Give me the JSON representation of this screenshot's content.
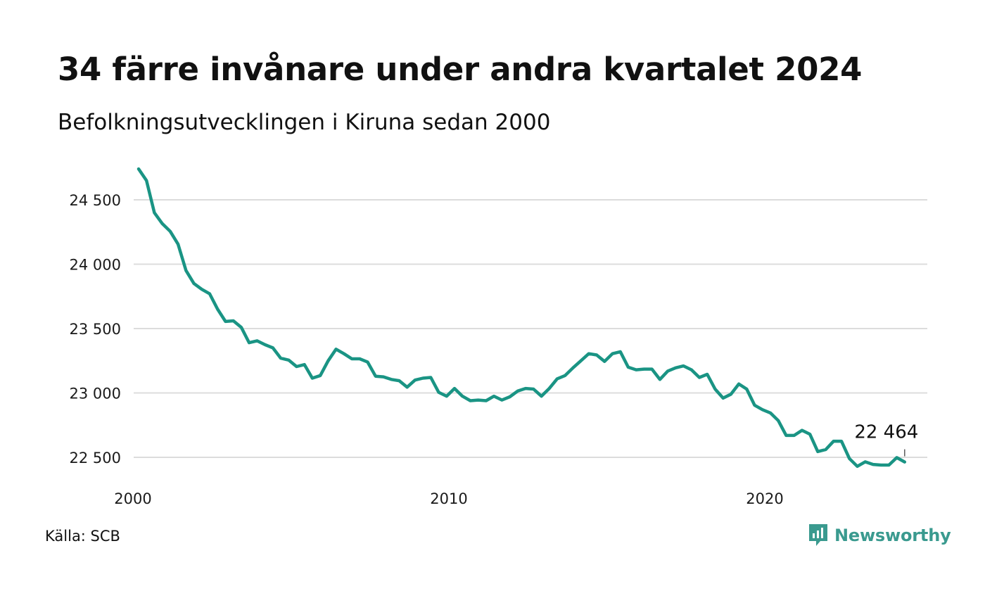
{
  "header": {
    "title": "34 färre invånare under andra kvartalet 2024",
    "subtitle": "Befolkningsutvecklingen i Kiruna sedan 2000"
  },
  "footer": {
    "source": "Källa: SCB",
    "brand": "Newsworthy",
    "brand_icon": "newsworthy-logo-icon"
  },
  "colors": {
    "line": "#1a9484",
    "grid": "#dcdcdc",
    "brand": "#3a9a8f"
  },
  "chart_data": {
    "type": "line",
    "x_tick_labels": [
      "2000",
      "2010",
      "2020"
    ],
    "y_tick_labels": [
      "24 500",
      "24 000",
      "23 500",
      "23 000",
      "22 500"
    ],
    "y_ticks": [
      24500,
      24000,
      23500,
      23000,
      22500
    ],
    "x_ticks": [
      2000,
      2010,
      2020
    ],
    "ylim": [
      22300,
      24750
    ],
    "xlim": [
      2000,
      2024.5
    ],
    "grid": "horizontal",
    "end_label": "22 464",
    "series": [
      {
        "x": [
          2000.0,
          2000.25,
          2000.5,
          2000.75,
          2001.0,
          2001.25,
          2001.5,
          2001.75,
          2002.0,
          2002.25,
          2002.5,
          2002.75,
          2003.0,
          2003.25,
          2003.5,
          2003.75,
          2004.0,
          2004.25,
          2004.5,
          2004.75,
          2005.0,
          2005.25,
          2005.5,
          2005.75,
          2006.0,
          2006.25,
          2006.5,
          2006.75,
          2007.0,
          2007.25,
          2007.5,
          2007.75,
          2008.0,
          2008.25,
          2008.5,
          2008.75,
          2009.0,
          2009.25,
          2009.5,
          2009.75,
          2010.0,
          2010.25,
          2010.5,
          2010.75,
          2011.0,
          2011.25,
          2011.5,
          2011.75,
          2012.0,
          2012.25,
          2012.5,
          2012.75,
          2013.0,
          2013.25,
          2013.5,
          2013.75,
          2014.0,
          2014.25,
          2014.5,
          2014.75,
          2015.0,
          2015.25,
          2015.5,
          2015.75,
          2016.0,
          2016.25,
          2016.5,
          2016.75,
          2017.0,
          2017.25,
          2017.5,
          2017.75,
          2018.0,
          2018.25,
          2018.5,
          2018.75,
          2019.0,
          2019.25,
          2019.5,
          2019.75,
          2020.0,
          2020.25,
          2020.5,
          2020.75,
          2021.0,
          2021.25,
          2021.5,
          2021.75,
          2022.0,
          2022.25,
          2022.5,
          2022.75,
          2023.0,
          2023.25,
          2023.5,
          2023.75,
          2024.0,
          2024.25
        ],
        "values": [
          24740,
          24650,
          24400,
          24315,
          24255,
          24155,
          23950,
          23850,
          23805,
          23770,
          23650,
          23555,
          23560,
          23510,
          23390,
          23405,
          23375,
          23350,
          23270,
          23255,
          23205,
          23220,
          23115,
          23135,
          23250,
          23340,
          23305,
          23265,
          23265,
          23240,
          23130,
          23125,
          23105,
          23095,
          23045,
          23100,
          23115,
          23120,
          23005,
          22975,
          23035,
          22975,
          22940,
          22945,
          22940,
          22975,
          22945,
          22970,
          23015,
          23035,
          23030,
          22975,
          23035,
          23110,
          23135,
          23195,
          23250,
          23305,
          23295,
          23245,
          23305,
          23320,
          23200,
          23180,
          23185,
          23185,
          23105,
          23170,
          23195,
          23210,
          23180,
          23120,
          23145,
          23030,
          22960,
          22990,
          23070,
          23030,
          22905,
          22870,
          22845,
          22785,
          22670,
          22670,
          22710,
          22680,
          22545,
          22560,
          22625,
          22625,
          22490,
          22430,
          22465,
          22445,
          22440,
          22440,
          22498,
          22464
        ]
      }
    ]
  }
}
